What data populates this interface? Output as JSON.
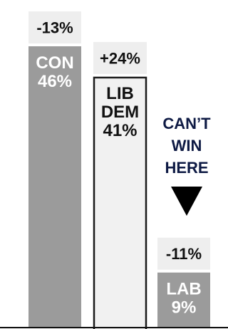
{
  "chart_data": {
    "type": "bar",
    "categories": [
      "CON",
      "LIB DEM",
      "LAB"
    ],
    "series": [
      {
        "values": [
          46,
          41,
          9
        ]
      }
    ],
    "change_labels": [
      "-13%",
      "+24%",
      "-11%"
    ],
    "value_labels": [
      "46%",
      "41%",
      "9%"
    ],
    "category_label_lines": [
      [
        "CON"
      ],
      [
        "LIB",
        "DEM"
      ],
      [
        "LAB"
      ]
    ],
    "annotation": {
      "lines": [
        "CAN’T",
        "WIN",
        "HERE"
      ],
      "marker": "down-arrow-icon"
    },
    "ylim": [
      0,
      50
    ],
    "grid": false,
    "legend": "none",
    "colors": {
      "con": "#9b9b9b",
      "libdem_fill": "#f1f1f1",
      "libdem_stroke": "#1a1a1a",
      "lab": "#9b9b9b",
      "change_box": "#eeeeee",
      "bar_text_light": "#ffffff",
      "bar_text_dark": "#111111",
      "annotation_text": "#0e1a44",
      "axis": "#111111"
    }
  }
}
